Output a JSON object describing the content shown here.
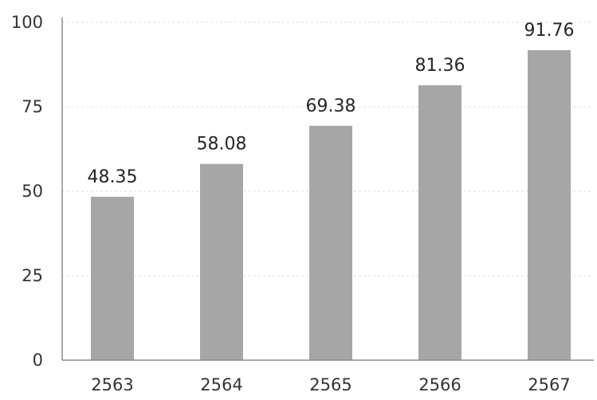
{
  "chart_data": {
    "type": "bar",
    "categories": [
      "2563",
      "2564",
      "2565",
      "2566",
      "2567"
    ],
    "values": [
      48.35,
      58.08,
      69.38,
      81.36,
      91.76
    ],
    "value_labels": [
      "48.35",
      "58.08",
      "69.38",
      "81.36",
      "91.76"
    ],
    "yticks": [
      0,
      25,
      50,
      75,
      100
    ],
    "ylim": [
      0,
      100
    ],
    "grid": true,
    "bar_color": "#a6a6a6",
    "axis_color": "#8c8c8c",
    "grid_color": "#dcdcdc",
    "title": "",
    "xlabel": "",
    "ylabel": ""
  }
}
